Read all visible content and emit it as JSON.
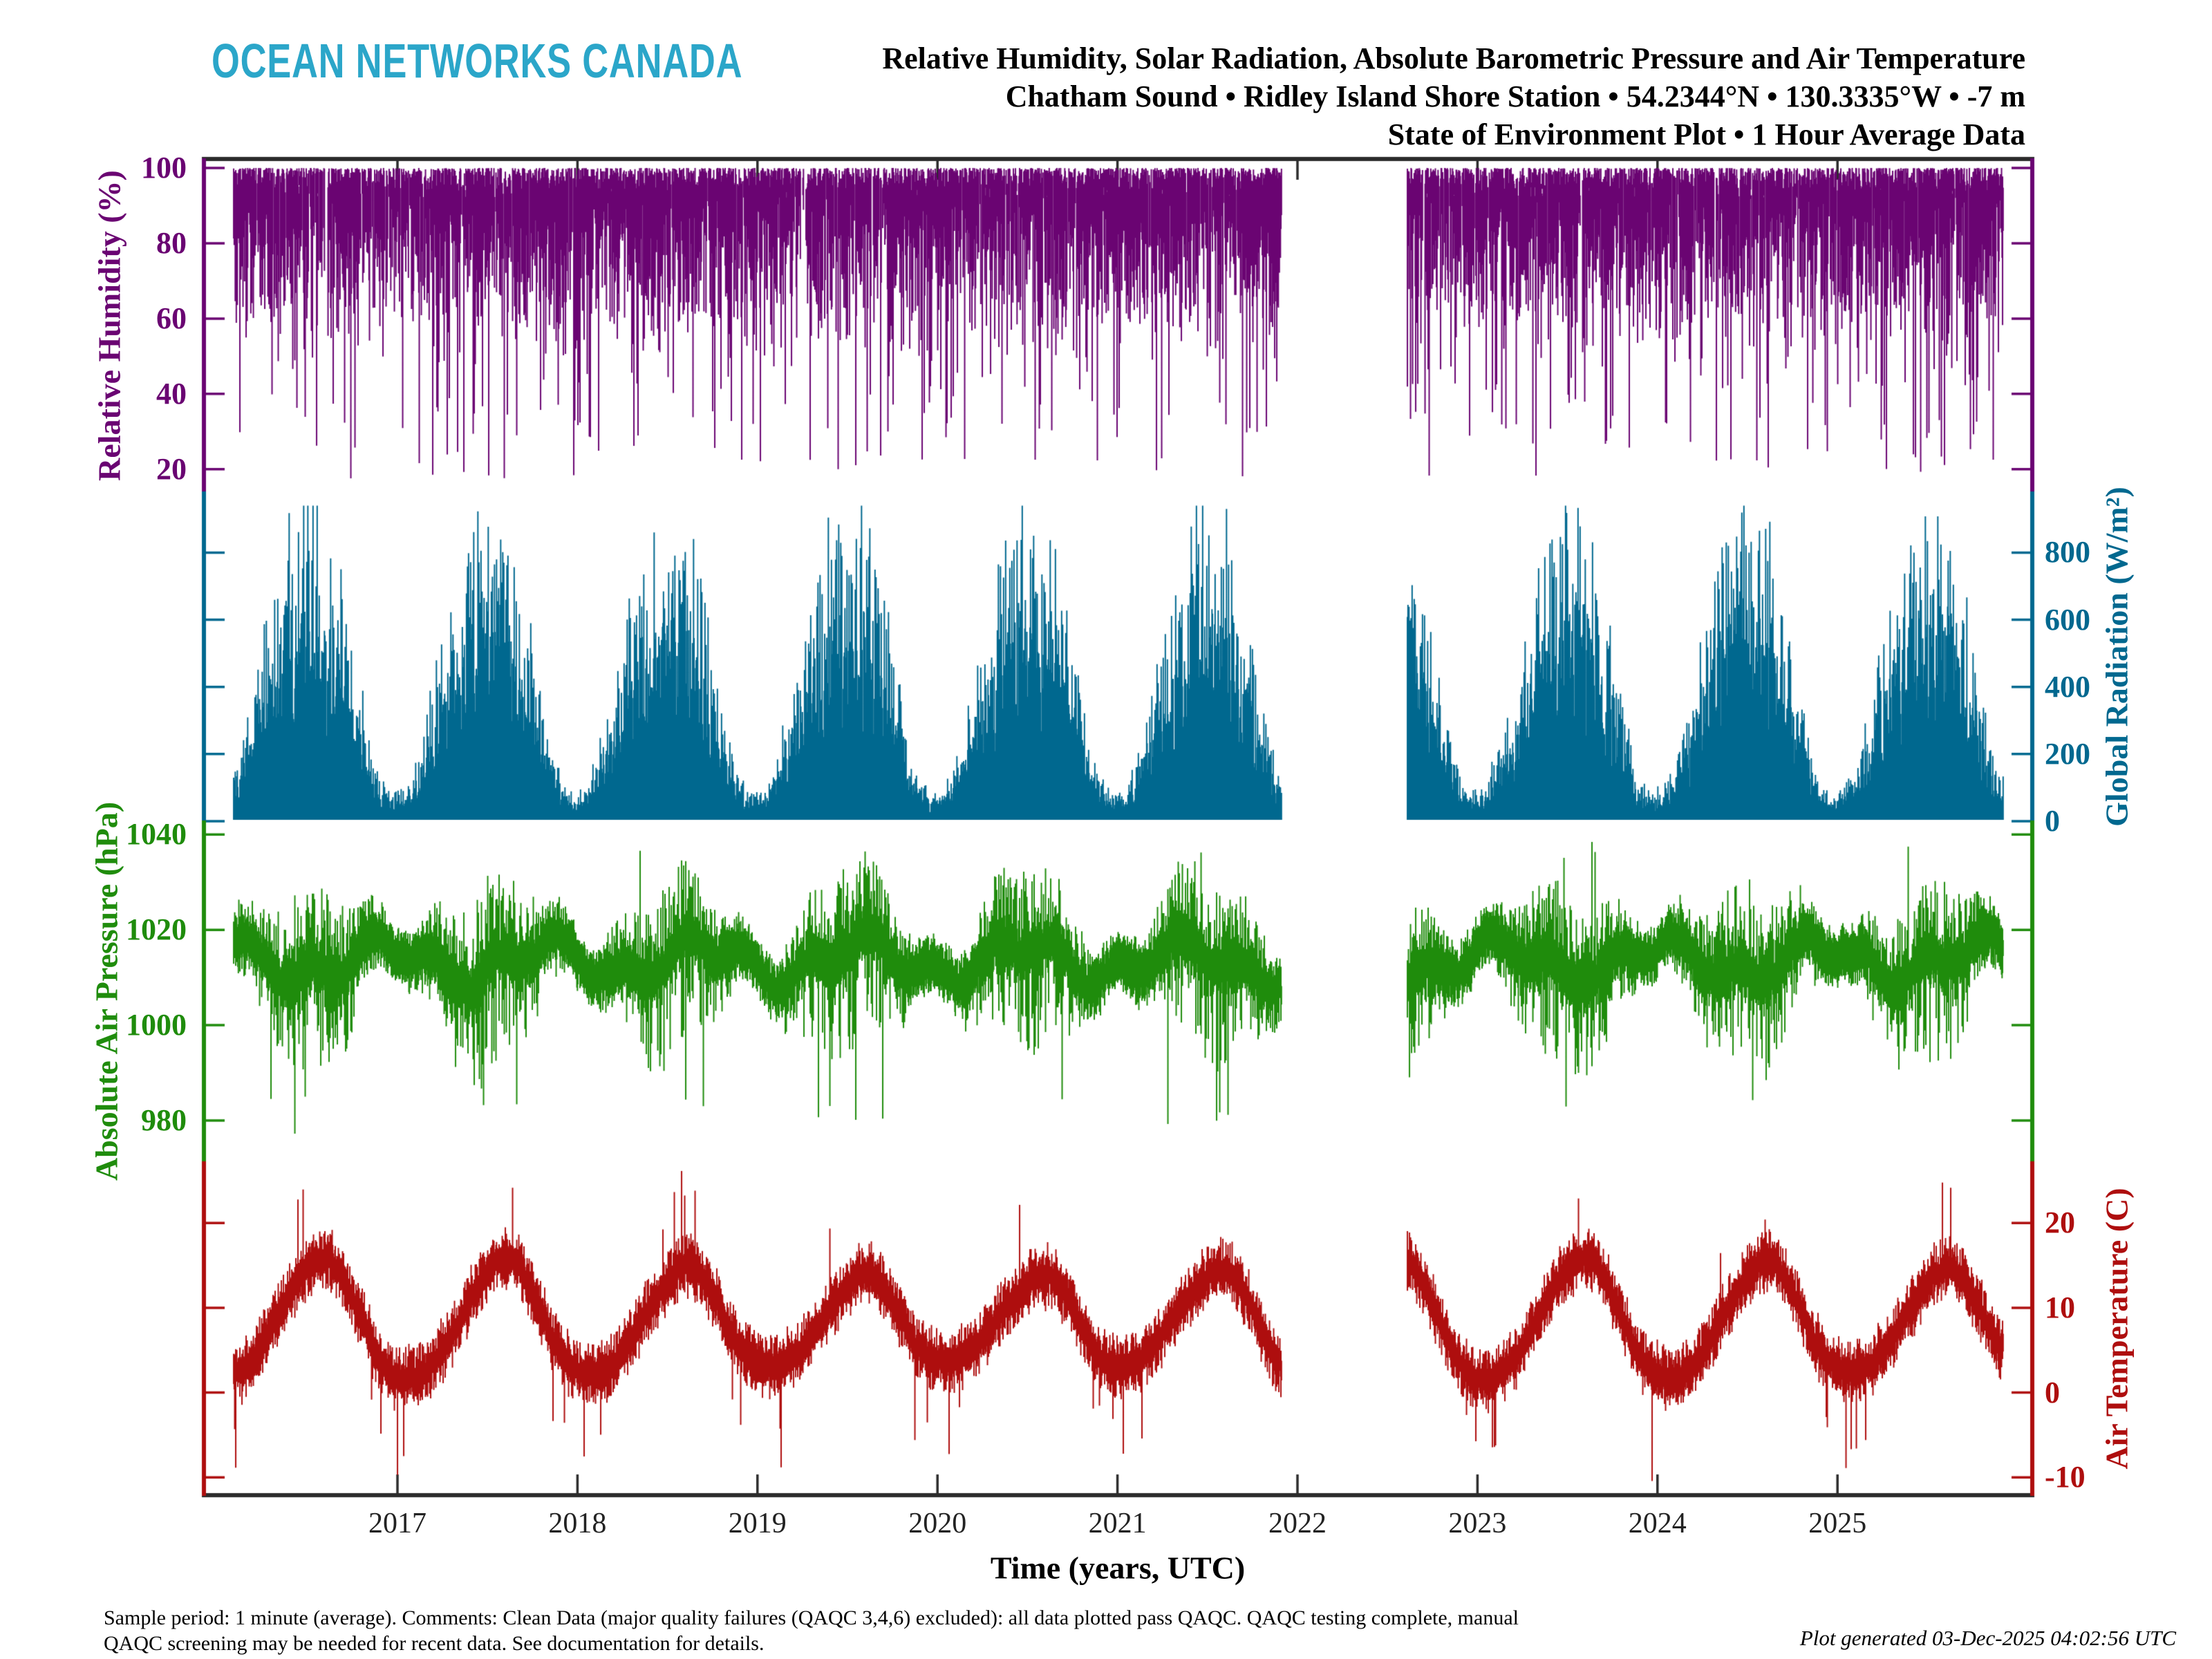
{
  "logo": {
    "text": "OCEAN NETWORKS CANADA",
    "color": "#2BA6C9"
  },
  "title": {
    "line1": "Relative Humidity, Solar Radiation, Absolute Barometric Pressure and Air Temperature",
    "line2": "Chatham Sound • Ridley Island Shore Station • 54.2344°N • 130.3335°W • -7 m",
    "line3": "State of Environment Plot • 1 Hour Average Data"
  },
  "footer": {
    "line1": "Sample period: 1 minute (average). Comments: Clean Data (major quality failures (QAQC 3,4,6) excluded): all data plotted pass QAQC. QAQC testing complete, manual",
    "line2": "QAQC screening may be needed for recent data. See documentation for details.",
    "generated": "Plot generated 03-Dec-2025 04:02:56 UTC"
  },
  "chart_data": {
    "type": "scatter",
    "title": "Relative Humidity, Solar Radiation, Absolute Barometric Pressure and Air Temperature",
    "x_axis": {
      "label": "Time (years, UTC)",
      "ticks": [
        2017,
        2018,
        2019,
        2020,
        2021,
        2022,
        2023,
        2024,
        2025
      ],
      "range": [
        2015.92,
        2026.08
      ]
    },
    "data_span_years": [
      2016.09,
      2025.92
    ],
    "data_gap_years": [
      2021.91,
      2022.61
    ],
    "frame_color": "#2B2B2B",
    "x_tick_label_color": "#222222",
    "grid": false,
    "legend": "none",
    "panels": [
      {
        "id": "relative-humidity",
        "label": "Relative Humidity (%)",
        "color": "#6A0472",
        "labels_side": "left",
        "ylim": [
          13.9,
          102.4
        ],
        "ticks": [
          20,
          40,
          60,
          80,
          100
        ],
        "summary": {
          "typical_top": 100,
          "dense_band_pct": [
            75,
            100
          ],
          "frequent_spike_lows_pct": [
            40,
            60
          ],
          "extreme_low_pct": 18
        }
      },
      {
        "id": "global-radiation",
        "label": "Global Radiation (W/m²)",
        "color": "#00688F",
        "labels_side": "right",
        "ylim": [
          0,
          980
        ],
        "ticks": [
          0,
          200,
          400,
          600,
          800
        ],
        "baseline": 0,
        "monthly_peak_envelope": [
          100,
          220,
          420,
          600,
          780,
          870,
          880,
          800,
          620,
          380,
          160,
          80
        ],
        "annual_summer_peak_range": [
          800,
          900
        ],
        "winter_min_range": [
          60,
          160
        ]
      },
      {
        "id": "absolute-air-pressure",
        "label": "Absolute Air Pressure (hPa)",
        "color": "#1F8C0C",
        "labels_side": "left",
        "ylim": [
          971.3,
          1042.8
        ],
        "ticks": [
          980,
          1000,
          1020,
          1040
        ],
        "summary": {
          "median_hpa": 1013.5,
          "winter_extremes_hpa": [
            975,
            1040
          ],
          "summer_band_hpa": [
            1000,
            1028
          ]
        }
      },
      {
        "id": "air-temperature",
        "label": "Air Temperature (C)",
        "color": "#AE0E0E",
        "labels_side": "right",
        "ylim": [
          -12.1,
          27.2
        ],
        "ticks": [
          -10,
          0,
          10,
          20
        ],
        "monthly_mean_c": [
          2.5,
          3.0,
          4.5,
          7.0,
          10.0,
          12.5,
          14.5,
          15.0,
          12.5,
          9.0,
          5.0,
          3.0
        ],
        "summary": {
          "summer_spike_max_c": 25,
          "winter_spike_min_c": -11
        }
      }
    ]
  }
}
